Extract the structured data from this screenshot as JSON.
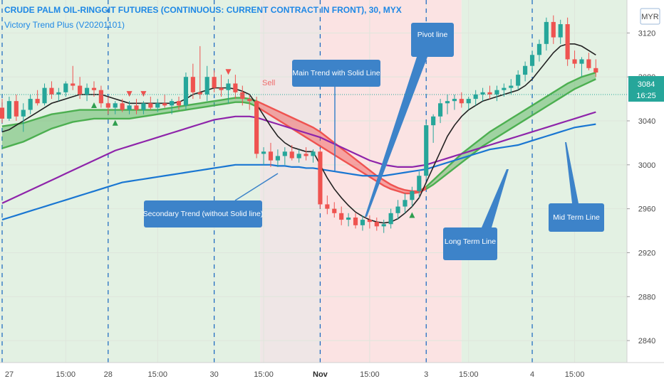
{
  "header": {
    "title": "CRUDE PALM OIL-RINGGIT FUTURES (CONTINUOUS: CURRENT CONTRACT IN FRONT), 30, MYX",
    "indicator": "Victory Trend Plus (V20201101)"
  },
  "currency_button": "MYR",
  "price_axis": {
    "last_price": "3084",
    "countdown": "16:25"
  },
  "colors": {
    "bull_bg": "#e3f1e3",
    "bear_bg": "#fbe3e3",
    "up_candle": "#26a69a",
    "down_candle": "#ef5350",
    "main_trend_bear": "#ef5350",
    "main_trend_bull": "#4caf50",
    "pivot_line": "#222222",
    "mid_term_line": "#8e24aa",
    "long_term_line": "#1976d2",
    "callout": "#3d83c9",
    "session_line": "#1565c0"
  },
  "callouts": {
    "main_trend": "Main Trend with Solid Line",
    "pivot": "Pivot line",
    "secondary": "Secondary Trend (without Solid line)",
    "long_term": "Long Term Line",
    "mid_term": "Mid Term Line"
  },
  "signals": {
    "sell_label": "Sell"
  },
  "chart_data": {
    "type": "candlestick",
    "title": "CRUDE PALM OIL-RINGGIT FUTURES (CONTINUOUS: CURRENT CONTRACT IN FRONT), 30, MYX",
    "ylim": [
      2820,
      3150
    ],
    "yticks": [
      2840,
      2880,
      2920,
      2960,
      3000,
      3040,
      3080,
      3120
    ],
    "xticks": [
      "27",
      "15:00",
      "28",
      "15:00",
      "30",
      "15:00",
      "Nov",
      "15:00",
      "3",
      "15:00",
      "4",
      "15:00"
    ],
    "x_range": [
      0,
      88
    ],
    "xtick_positions": [
      0,
      9,
      15,
      22,
      30,
      37,
      45,
      52,
      60,
      66,
      75,
      81
    ],
    "session_lines": [
      0,
      15,
      30,
      45,
      60,
      75
    ],
    "regimes": [
      {
        "from": 0,
        "to": 36.5,
        "trend": "bull"
      },
      {
        "from": 36.5,
        "to": 45,
        "trend": "neutral"
      },
      {
        "from": 45,
        "to": 65,
        "trend": "bear"
      },
      {
        "from": 65,
        "to": 88,
        "trend": "bull"
      }
    ],
    "candles": [
      [
        3052,
        3060,
        3038,
        3042
      ],
      [
        3042,
        3062,
        3040,
        3058
      ],
      [
        3058,
        3064,
        3040,
        3044
      ],
      [
        3044,
        3056,
        3030,
        3050
      ],
      [
        3050,
        3064,
        3046,
        3060
      ],
      [
        3060,
        3068,
        3054,
        3056
      ],
      [
        3056,
        3074,
        3054,
        3070
      ],
      [
        3070,
        3076,
        3060,
        3064
      ],
      [
        3064,
        3070,
        3058,
        3066
      ],
      [
        3066,
        3076,
        3062,
        3074
      ],
      [
        3074,
        3090,
        3068,
        3072
      ],
      [
        3072,
        3080,
        3060,
        3064
      ],
      [
        3064,
        3074,
        3058,
        3070
      ],
      [
        3070,
        3076,
        3062,
        3068
      ],
      [
        3068,
        3072,
        3052,
        3056
      ],
      [
        3056,
        3062,
        3046,
        3052
      ],
      [
        3052,
        3058,
        3046,
        3056
      ],
      [
        3056,
        3060,
        3048,
        3050
      ],
      [
        3050,
        3058,
        3046,
        3054
      ],
      [
        3054,
        3060,
        3046,
        3050
      ],
      [
        3050,
        3058,
        3046,
        3056
      ],
      [
        3056,
        3062,
        3050,
        3052
      ],
      [
        3052,
        3060,
        3048,
        3056
      ],
      [
        3056,
        3064,
        3052,
        3054
      ],
      [
        3054,
        3060,
        3046,
        3058
      ],
      [
        3058,
        3062,
        3050,
        3054
      ],
      [
        3054,
        3084,
        3050,
        3080
      ],
      [
        3080,
        3092,
        3060,
        3066
      ],
      [
        3066,
        3108,
        3060,
        3064
      ],
      [
        3064,
        3090,
        3058,
        3080
      ],
      [
        3080,
        3086,
        3066,
        3070
      ],
      [
        3070,
        3082,
        3062,
        3068
      ],
      [
        3068,
        3078,
        3056,
        3074
      ],
      [
        3074,
        3082,
        3060,
        3066
      ],
      [
        3066,
        3072,
        3054,
        3060
      ],
      [
        3060,
        3064,
        3050,
        3058
      ],
      [
        3058,
        3062,
        3006,
        3010
      ],
      [
        3010,
        3016,
        3000,
        3012
      ],
      [
        3012,
        3020,
        2998,
        3004
      ],
      [
        3004,
        3014,
        2998,
        3008
      ],
      [
        3008,
        3016,
        3000,
        3012
      ],
      [
        3012,
        3018,
        3004,
        3006
      ],
      [
        3006,
        3014,
        3002,
        3010
      ],
      [
        3010,
        3016,
        3004,
        3008
      ],
      [
        3008,
        3014,
        3002,
        3012
      ],
      [
        3012,
        3014,
        2960,
        2964
      ],
      [
        2964,
        2972,
        2955,
        2960
      ],
      [
        2960,
        2966,
        2952,
        2956
      ],
      [
        2956,
        2962,
        2945,
        2950
      ],
      [
        2950,
        2956,
        2944,
        2952
      ],
      [
        2952,
        2956,
        2942,
        2945
      ],
      [
        2945,
        2954,
        2940,
        2950
      ],
      [
        2950,
        2954,
        2942,
        2948
      ],
      [
        2948,
        2952,
        2940,
        2944
      ],
      [
        2944,
        2950,
        2938,
        2946
      ],
      [
        2946,
        2960,
        2942,
        2956
      ],
      [
        2956,
        2968,
        2950,
        2962
      ],
      [
        2962,
        2974,
        2956,
        2968
      ],
      [
        2968,
        2980,
        2962,
        2976
      ],
      [
        2976,
        2994,
        2970,
        2990
      ],
      [
        2990,
        3040,
        2986,
        3036
      ],
      [
        3036,
        3046,
        3020,
        3044
      ],
      [
        3044,
        3060,
        3038,
        3056
      ],
      [
        3056,
        3064,
        3046,
        3058
      ],
      [
        3058,
        3064,
        3050,
        3060
      ],
      [
        3060,
        3066,
        3052,
        3056
      ],
      [
        3056,
        3062,
        3050,
        3060
      ],
      [
        3060,
        3068,
        3054,
        3064
      ],
      [
        3064,
        3070,
        3058,
        3066
      ],
      [
        3066,
        3072,
        3060,
        3064
      ],
      [
        3064,
        3072,
        3058,
        3068
      ],
      [
        3068,
        3074,
        3062,
        3070
      ],
      [
        3070,
        3078,
        3064,
        3072
      ],
      [
        3072,
        3086,
        3068,
        3082
      ],
      [
        3082,
        3094,
        3076,
        3090
      ],
      [
        3090,
        3104,
        3084,
        3100
      ],
      [
        3100,
        3114,
        3094,
        3110
      ],
      [
        3110,
        3134,
        3104,
        3130
      ],
      [
        3130,
        3136,
        3110,
        3116
      ],
      [
        3116,
        3132,
        3110,
        3128
      ],
      [
        3128,
        3134,
        3090,
        3096
      ],
      [
        3096,
        3104,
        3088,
        3092
      ],
      [
        3092,
        3098,
        3080,
        3096
      ],
      [
        3096,
        3102,
        3086,
        3088
      ],
      [
        3088,
        3096,
        3080,
        3084
      ]
    ],
    "series": [
      {
        "key": "pivot",
        "values": [
          3030,
          3032,
          3036,
          3040,
          3044,
          3048,
          3052,
          3056,
          3058,
          3060,
          3062,
          3064,
          3064,
          3064,
          3064,
          3062,
          3060,
          3058,
          3056,
          3056,
          3056,
          3056,
          3056,
          3056,
          3056,
          3057,
          3060,
          3064,
          3066,
          3068,
          3070,
          3070,
          3070,
          3069,
          3067,
          3064,
          3055,
          3045,
          3035,
          3026,
          3020,
          3016,
          3014,
          3012,
          3012,
          3000,
          2988,
          2978,
          2970,
          2963,
          2957,
          2953,
          2950,
          2948,
          2947,
          2948,
          2951,
          2956,
          2962,
          2970,
          2984,
          2998,
          3012,
          3026,
          3036,
          3044,
          3050,
          3054,
          3058,
          3060,
          3062,
          3064,
          3066,
          3068,
          3072,
          3078,
          3086,
          3094,
          3102,
          3108,
          3110,
          3110,
          3108,
          3104,
          3100
        ]
      },
      {
        "key": "mid_term",
        "values": [
          2965,
          2968,
          2971,
          2974,
          2977,
          2980,
          2983,
          2986,
          2989,
          2992,
          2995,
          2998,
          3001,
          3004,
          3007,
          3010,
          3013,
          3015,
          3017,
          3019,
          3021,
          3023,
          3025,
          3027,
          3029,
          3031,
          3033,
          3035,
          3037,
          3039,
          3041,
          3042,
          3043,
          3044,
          3044,
          3044,
          3043,
          3041,
          3039,
          3037,
          3035,
          3033,
          3031,
          3029,
          3027,
          3025,
          3022,
          3019,
          3016,
          3013,
          3010,
          3007,
          3004,
          3002,
          3000,
          2999,
          2998,
          2998,
          2998,
          2999,
          3000,
          3002,
          3004,
          3006,
          3008,
          3010,
          3012,
          3014,
          3016,
          3018,
          3020,
          3022,
          3024,
          3026,
          3028,
          3030,
          3032,
          3034,
          3036,
          3038,
          3040,
          3042,
          3044,
          3046,
          3048
        ]
      },
      {
        "key": "long_term",
        "values": [
          2950,
          2952,
          2954,
          2956,
          2958,
          2960,
          2962,
          2964,
          2966,
          2968,
          2970,
          2972,
          2974,
          2976,
          2978,
          2980,
          2982,
          2984,
          2985,
          2986,
          2987,
          2988,
          2989,
          2990,
          2991,
          2992,
          2993,
          2994,
          2995,
          2996,
          2997,
          2998,
          2999,
          3000,
          3000,
          3000,
          3000,
          3000,
          3000,
          2999,
          2999,
          2998,
          2998,
          2997,
          2997,
          2996,
          2995,
          2994,
          2993,
          2992,
          2991,
          2990,
          2990,
          2990,
          2990,
          2991,
          2992,
          2993,
          2994,
          2995,
          2996,
          2998,
          3000,
          3002,
          3004,
          3006,
          3008,
          3010,
          3012,
          3014,
          3015,
          3016,
          3017,
          3018,
          3020,
          3022,
          3024,
          3026,
          3028,
          3030,
          3032,
          3034,
          3035,
          3036,
          3037
        ]
      },
      {
        "key": "main_a",
        "values": [
          3035,
          3036,
          3037,
          3038,
          3040,
          3042,
          3044,
          3046,
          3047,
          3048,
          3049,
          3050,
          3050,
          3050,
          3050,
          3050,
          3050,
          3050,
          3050,
          3050,
          3050,
          3050,
          3050,
          3051,
          3052,
          3053,
          3054,
          3055,
          3056,
          3057,
          3058,
          3059,
          3060,
          3061,
          3061,
          3060,
          3058,
          3055,
          3052,
          3049,
          3046,
          3043,
          3040,
          3037,
          3034,
          3030,
          3025,
          3020,
          3015,
          3010,
          3005,
          3000,
          2995,
          2990,
          2986,
          2982,
          2979,
          2977,
          2976,
          2976,
          2980,
          2986,
          2992,
          2998,
          3004,
          3010,
          3015,
          3020,
          3025,
          3030,
          3034,
          3038,
          3042,
          3046,
          3050,
          3054,
          3058,
          3062,
          3066,
          3070,
          3074,
          3077,
          3080,
          3082,
          3084
        ]
      },
      {
        "key": "main_b",
        "values": [
          3015,
          3017,
          3019,
          3021,
          3024,
          3027,
          3030,
          3033,
          3035,
          3037,
          3039,
          3040,
          3041,
          3042,
          3042,
          3042,
          3042,
          3042,
          3042,
          3043,
          3044,
          3045,
          3046,
          3047,
          3048,
          3049,
          3050,
          3051,
          3052,
          3053,
          3054,
          3055,
          3056,
          3057,
          3057,
          3056,
          3053,
          3049,
          3045,
          3041,
          3037,
          3033,
          3029,
          3025,
          3021,
          3017,
          3013,
          3009,
          3005,
          3001,
          2997,
          2993,
          2989,
          2985,
          2981,
          2978,
          2976,
          2974,
          2974,
          2975,
          2978,
          2982,
          2987,
          2992,
          2997,
          3002,
          3007,
          3012,
          3017,
          3021,
          3025,
          3029,
          3033,
          3037,
          3041,
          3045,
          3049,
          3053,
          3057,
          3061,
          3065,
          3069,
          3072,
          3075,
          3078
        ]
      }
    ],
    "sell_markers": [
      18,
      20,
      32
    ],
    "buy_markers": [
      13,
      16,
      58
    ]
  }
}
